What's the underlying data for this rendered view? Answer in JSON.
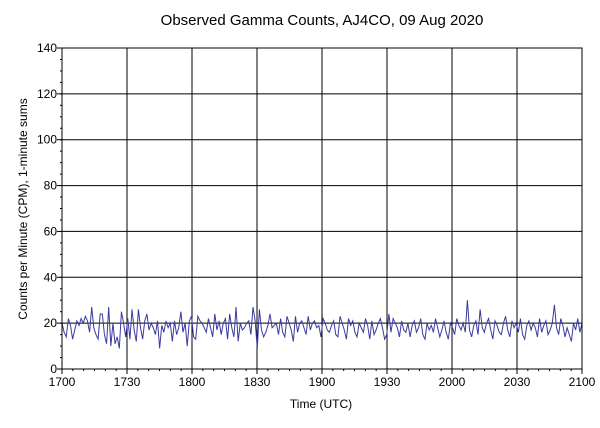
{
  "chart_data": {
    "type": "line",
    "title": "Observed Gamma Counts, AJ4CO, 09 Aug 2020",
    "xlabel": "Time (UTC)",
    "ylabel": "Counts per Minute (CPM), 1-minute sums",
    "x_ticks": [
      "1700",
      "1730",
      "1800",
      "1830",
      "1900",
      "1930",
      "2000",
      "2030",
      "2100"
    ],
    "y_ticks": [
      "0",
      "20",
      "40",
      "60",
      "80",
      "100",
      "120",
      "140"
    ],
    "xlim_minutes": [
      0,
      240
    ],
    "ylim": [
      0,
      140
    ],
    "grid": true,
    "line_color": "#3a3aa0",
    "series": [
      {
        "values": [
          20,
          16,
          14,
          22,
          19,
          13,
          17,
          21,
          19,
          22,
          20,
          23,
          21,
          16,
          27,
          18,
          15,
          13,
          24,
          24,
          15,
          11,
          27,
          10,
          20,
          11,
          14,
          9,
          25,
          20,
          14,
          22,
          13,
          26,
          17,
          12,
          26,
          18,
          13,
          21,
          24,
          17,
          20,
          18,
          15,
          21,
          9,
          19,
          16,
          21,
          18,
          20,
          12,
          21,
          15,
          18,
          25,
          16,
          20,
          10,
          21,
          23,
          14,
          13,
          23,
          21,
          20,
          18,
          16,
          22,
          18,
          14,
          24,
          17,
          21,
          15,
          20,
          22,
          13,
          24,
          18,
          14,
          27,
          12,
          20,
          17,
          18,
          20,
          21,
          15,
          27,
          21,
          9,
          26,
          17,
          14,
          16,
          19,
          24,
          18,
          19,
          20,
          15,
          22,
          16,
          14,
          23,
          20,
          17,
          12,
          23,
          16,
          20,
          21,
          18,
          15,
          23,
          17,
          20,
          21,
          18,
          19,
          14,
          22,
          20,
          17,
          16,
          19,
          21,
          15,
          14,
          23,
          20,
          17,
          13,
          22,
          19,
          21,
          16,
          14,
          20,
          18,
          16,
          22,
          19,
          13,
          21,
          15,
          17,
          20,
          22,
          18,
          13,
          15,
          24,
          16,
          22,
          20,
          18,
          14,
          21,
          17,
          16,
          20,
          14,
          19,
          21,
          16,
          18,
          22,
          15,
          13,
          20,
          17,
          19,
          16,
          22,
          18,
          14,
          17,
          21,
          16,
          13,
          20,
          18,
          15,
          22,
          19,
          17,
          20,
          16,
          30,
          17,
          14,
          19,
          21,
          15,
          26,
          18,
          16,
          20,
          22,
          17,
          13,
          21,
          19,
          16,
          15,
          20,
          23,
          17,
          14,
          21,
          18,
          20,
          16,
          22,
          15,
          13,
          19,
          21,
          17,
          20,
          18,
          14,
          22,
          16,
          19,
          21,
          15,
          17,
          20,
          28,
          18,
          15,
          22,
          19,
          14,
          18,
          15,
          12,
          20,
          17,
          22,
          16,
          20
        ]
      }
    ]
  }
}
